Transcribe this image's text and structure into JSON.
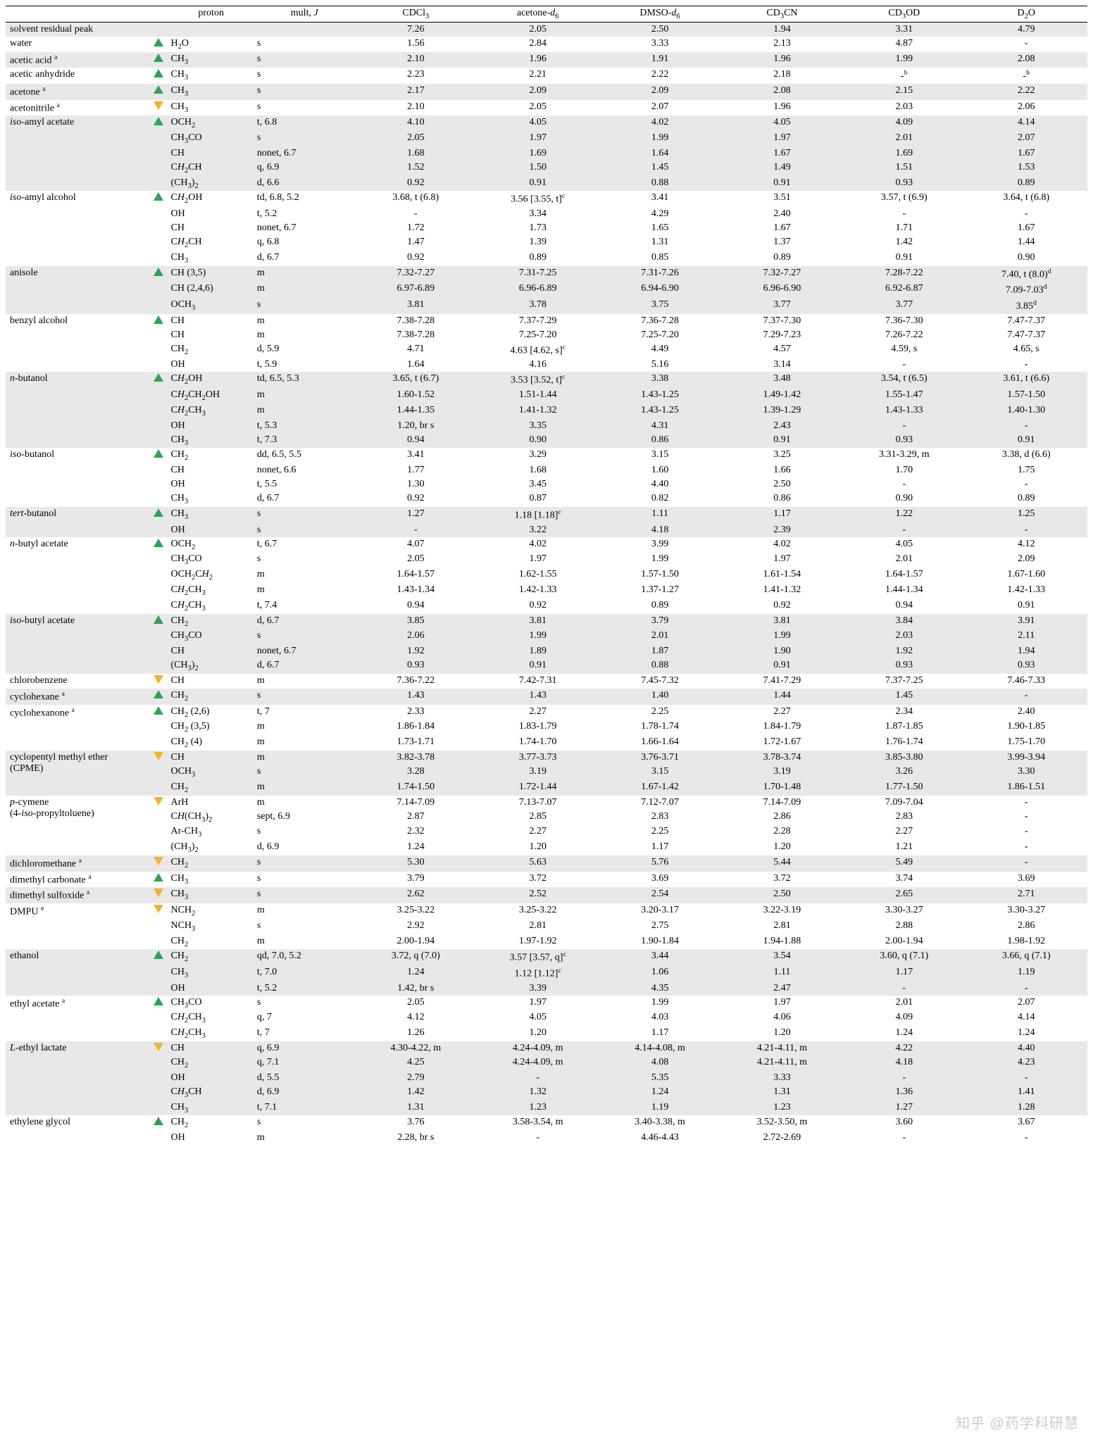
{
  "headers": [
    "proton",
    "mult, J",
    "CDCl3",
    "acetone-d6",
    "DMSO-d6",
    "CD3CN",
    "CD3OD",
    "D2O"
  ],
  "headers_html": [
    "proton",
    "mult, <i>J</i>",
    "CDCl<sub>3</sub>",
    "acetone-<i>d</i><sub>6</sub>",
    "DMSO-<i>d</i><sub>6</sub>",
    "CD<sub>3</sub>CN",
    "CD<sub>3</sub>OD",
    "D<sub>2</sub>O"
  ],
  "marker_colors": {
    "up": "#2ea44f",
    "down": "#f0b429"
  },
  "row_colors": {
    "grey": "#e8e8e8",
    "white": "#ffffff"
  },
  "watermark_text": "知乎 @药学科研慧",
  "rows": [
    {
      "grey": true,
      "name": "solvent residual peak",
      "marker": "",
      "sub": [
        [
          "",
          "",
          "7.26",
          "2.05",
          "2.50",
          "1.94",
          "3.31",
          "4.79"
        ]
      ]
    },
    {
      "grey": false,
      "name": "water",
      "marker": "up",
      "sub": [
        [
          "H2O",
          "s",
          "1.56",
          "2.84",
          "3.33",
          "2.13",
          "4.87",
          "-"
        ]
      ]
    },
    {
      "grey": true,
      "name": "acetic acid <sup>a</sup>",
      "marker": "up",
      "sub": [
        [
          "CH3",
          "s",
          "2.10",
          "1.96",
          "1.91",
          "1.96",
          "1.99",
          "2.08"
        ]
      ]
    },
    {
      "grey": false,
      "name": "acetic anhydride",
      "marker": "up",
      "sub": [
        [
          "CH3",
          "s",
          "2.23",
          "2.21",
          "2.22",
          "2.18",
          "-<sup>b</sup>",
          "-<sup>b</sup>"
        ]
      ]
    },
    {
      "grey": true,
      "name": "acetone <sup>a</sup>",
      "marker": "up",
      "sub": [
        [
          "CH3",
          "s",
          "2.17",
          "2.09",
          "2.09",
          "2.08",
          "2.15",
          "2.22"
        ]
      ]
    },
    {
      "grey": false,
      "name": "acetonitrile <sup>a</sup>",
      "marker": "down",
      "sub": [
        [
          "CH3",
          "s",
          "2.10",
          "2.05",
          "2.07",
          "1.96",
          "2.03",
          "2.06"
        ]
      ]
    },
    {
      "grey": true,
      "name": "iso-amyl acetate",
      "name_html": "<i>iso</i>-amyl acetate",
      "marker": "up",
      "sub": [
        [
          "OCH2",
          "t, 6.8",
          "4.10",
          "4.05",
          "4.02",
          "4.05",
          "4.09",
          "4.14"
        ],
        [
          "CH3CO",
          "s",
          "2.05",
          "1.97",
          "1.99",
          "1.97",
          "2.01",
          "2.07"
        ],
        [
          "CH",
          "nonet, 6.7",
          "1.68",
          "1.69",
          "1.64",
          "1.67",
          "1.69",
          "1.67"
        ],
        [
          "CH2CH",
          "q, 6.9",
          "1.52",
          "1.50",
          "1.45",
          "1.49",
          "1.51",
          "1.53"
        ],
        [
          "(CH3)2",
          "d, 6.6",
          "0.92",
          "0.91",
          "0.88",
          "0.91",
          "0.93",
          "0.89"
        ]
      ]
    },
    {
      "grey": false,
      "name": "iso-amyl alcohol",
      "name_html": "<i>iso</i>-amyl alcohol",
      "marker": "up",
      "sub": [
        [
          "CH2OH",
          "td, 6.8, 5.2",
          "3.68, t (6.8)",
          "3.56 [3.55, t]<sup>c</sup>",
          "3.41",
          "3.51",
          "3.57, t (6.9)",
          "3.64, t (6.8)"
        ],
        [
          "OH",
          "t, 5.2",
          "-",
          "3.34",
          "4.29",
          "2.40",
          "-",
          "-"
        ],
        [
          "CH",
          "nonet, 6.7",
          "1.72",
          "1.73",
          "1.65",
          "1.67",
          "1.71",
          "1.67"
        ],
        [
          "CH2CH",
          "q, 6.8",
          "1.47",
          "1.39",
          "1.31",
          "1.37",
          "1.42",
          "1.44"
        ],
        [
          "CH3",
          "d, 6.7",
          "0.92",
          "0.89",
          "0.85",
          "0.89",
          "0.91",
          "0.90"
        ]
      ]
    },
    {
      "grey": true,
      "name": "anisole",
      "marker": "up",
      "sub": [
        [
          "CH (3,5)",
          "m",
          "7.32-7.27",
          "7.31-7.25",
          "7.31-7.26",
          "7.32-7.27",
          "7.28-7.22",
          "7.40, t (8.0)<sup>d</sup>"
        ],
        [
          "CH (2,4,6)",
          "m",
          "6.97-6.89",
          "6.96-6.89",
          "6.94-6.90",
          "6.96-6.90",
          "6.92-6.87",
          "7.09-7.03<sup>d</sup>"
        ],
        [
          "OCH3",
          "s",
          "3.81",
          "3.78",
          "3.75",
          "3.77",
          "3.77",
          "3.85<sup>d</sup>"
        ]
      ]
    },
    {
      "grey": false,
      "name": "benzyl alcohol",
      "marker": "up",
      "sub": [
        [
          "CH",
          "m",
          "7.38-7.28",
          "7.37-7.29",
          "7.36-7.28",
          "7.37-7.30",
          "7.36-7.30",
          "7.47-7.37"
        ],
        [
          "CH",
          "m",
          "7.38-7.28",
          "7.25-7.20",
          "7.25-7.20",
          "7.29-7.23",
          "7.26-7.22",
          "7.47-7.37"
        ],
        [
          "CH2",
          "d, 5.9",
          "4.71",
          "4.63 [4.62, s]<sup>c</sup>",
          "4.49",
          "4.57",
          "4.59, s",
          "4.65, s"
        ],
        [
          "OH",
          "t, 5.9",
          "1.64",
          "4.16",
          "5.16",
          "3.14",
          "-",
          "-"
        ]
      ]
    },
    {
      "grey": true,
      "name": "n-butanol",
      "name_html": "<i>n</i>-butanol",
      "marker": "up",
      "sub": [
        [
          "CH2OH",
          "td, 6.5, 5.3",
          "3.65, t (6.7)",
          "3.53 [3.52, t]<sup>c</sup>",
          "3.38",
          "3.48",
          "3.54, t (6.5)",
          "3.61, t (6.6)"
        ],
        [
          "CH2CH2OH",
          "m",
          "1.60-1.52",
          "1.51-1.44",
          "1.43-1.25",
          "1.49-1.42",
          "1.55-1.47",
          "1.57-1.50"
        ],
        [
          "CH2CH3",
          "m",
          "1.44-1.35",
          "1.41-1.32",
          "1.43-1.25",
          "1.39-1.29",
          "1.43-1.33",
          "1.40-1.30"
        ],
        [
          "OH",
          "t, 5.3",
          "1.20, br s",
          "3.35",
          "4.31",
          "2.43",
          "-",
          "-"
        ],
        [
          "CH3",
          "t, 7.3",
          "0.94",
          "0.90",
          "0.86",
          "0.91",
          "0.93",
          "0.91"
        ]
      ]
    },
    {
      "grey": false,
      "name": "iso-butanol",
      "name_html": "<i>iso</i>-butanol",
      "marker": "up",
      "sub": [
        [
          "CH2",
          "dd, 6.5, 5.5",
          "3.41",
          "3.29",
          "3.15",
          "3.25",
          "3.31-3.29, m",
          "3.38, d (6.6)"
        ],
        [
          "CH",
          "nonet, 6.6",
          "1.77",
          "1.68",
          "1.60",
          "1.66",
          "1.70",
          "1.75"
        ],
        [
          "OH",
          "t, 5.5",
          "1.30",
          "3.45",
          "4.40",
          "2.50",
          "-",
          "-"
        ],
        [
          "CH3",
          "d, 6.7",
          "0.92",
          "0.87",
          "0.82",
          "0.86",
          "0.90",
          "0.89"
        ]
      ]
    },
    {
      "grey": true,
      "name": "tert-butanol",
      "name_html": "<i>tert</i>-butanol",
      "marker": "up",
      "sub": [
        [
          "CH3",
          "s",
          "1.27",
          "1.18 [1.18]<sup>c</sup>",
          "1.11",
          "1.17",
          "1.22",
          "1.25"
        ],
        [
          "OH",
          "s",
          "-",
          "3.22",
          "4.18",
          "2.39",
          "-",
          "-"
        ]
      ]
    },
    {
      "grey": false,
      "name": "n-butyl acetate",
      "name_html": "<i>n</i>-butyl acetate",
      "marker": "up",
      "sub": [
        [
          "OCH2",
          "t, 6.7",
          "4.07",
          "4.02",
          "3.99",
          "4.02",
          "4.05",
          "4.12"
        ],
        [
          "CH3CO",
          "s",
          "2.05",
          "1.97",
          "1.99",
          "1.97",
          "2.01",
          "2.09"
        ],
        [
          "OCH2CH2",
          "m",
          "1.64-1.57",
          "1.62-1.55",
          "1.57-1.50",
          "1.61-1.54",
          "1.64-1.57",
          "1.67-1.60"
        ],
        [
          "CH2CH3",
          "m",
          "1.43-1.34",
          "1.42-1.33",
          "1.37-1.27",
          "1.41-1.32",
          "1.44-1.34",
          "1.42-1.33"
        ],
        [
          "CH2CH3",
          "t, 7.4",
          "0.94",
          "0.92",
          "0.89",
          "0.92",
          "0.94",
          "0.91"
        ]
      ]
    },
    {
      "grey": true,
      "name": "iso-butyl acetate",
      "name_html": "<i>iso</i>-butyl acetate",
      "marker": "up",
      "sub": [
        [
          "CH2",
          "d, 6.7",
          "3.85",
          "3.81",
          "3.79",
          "3.81",
          "3.84",
          "3.91"
        ],
        [
          "CH3CO",
          "s",
          "2.06",
          "1.99",
          "2.01",
          "1.99",
          "2.03",
          "2.11"
        ],
        [
          "CH",
          "nonet, 6.7",
          "1.92",
          "1.89",
          "1.87",
          "1.90",
          "1.92",
          "1.94"
        ],
        [
          "(CH3)2",
          "d, 6.7",
          "0.93",
          "0.91",
          "0.88",
          "0.91",
          "0.93",
          "0.93"
        ]
      ]
    },
    {
      "grey": false,
      "name": "chlorobenzene",
      "marker": "down",
      "sub": [
        [
          "CH",
          "m",
          "7.36-7.22",
          "7.42-7.31",
          "7.45-7.32",
          "7.41-7.29",
          "7.37-7.25",
          "7.46-7.33"
        ]
      ]
    },
    {
      "grey": true,
      "name": "cyclohexane <sup>a</sup>",
      "marker": "up",
      "sub": [
        [
          "CH2",
          "s",
          "1.43",
          "1.43",
          "1.40",
          "1.44",
          "1.45",
          "-"
        ]
      ]
    },
    {
      "grey": false,
      "name": "cyclohexanone <sup>a</sup>",
      "marker": "up",
      "sub": [
        [
          "CH2 (2,6)",
          "t, 7",
          "2.33",
          "2.27",
          "2.25",
          "2.27",
          "2.34",
          "2.40"
        ],
        [
          "CH2 (3,5)",
          "m",
          "1.86-1.84",
          "1.83-1.79",
          "1.78-1.74",
          "1.84-1.79",
          "1.87-1.85",
          "1.90-1.85"
        ],
        [
          "CH2 (4)",
          "m",
          "1.73-1.71",
          "1.74-1.70",
          "1.66-1.64",
          "1.72-1.67",
          "1.76-1.74",
          "1.75-1.70"
        ]
      ]
    },
    {
      "grey": true,
      "name": "cyclopentyl methyl ether<br>(CPME)",
      "marker": "down",
      "sub": [
        [
          "CH",
          "m",
          "3.82-3.78",
          "3.77-3.73",
          "3.76-3.71",
          "3.78-3.74",
          "3.85-3.80",
          "3.99-3.94"
        ],
        [
          "OCH3",
          "s",
          "3.28",
          "3.19",
          "3.15",
          "3.19",
          "3.26",
          "3.30"
        ],
        [
          "CH2",
          "m",
          "1.74-1.50",
          "1.72-1.44",
          "1.67-1.42",
          "1.70-1.48",
          "1.77-1.50",
          "1.86-1.51"
        ]
      ]
    },
    {
      "grey": false,
      "name": "p-cymene\n(4-iso-propyltoluene)",
      "name_html": "<i>p</i>-cymene<br>(4-<i>iso</i>-propyltoluene)",
      "marker": "down",
      "sub": [
        [
          "ArH",
          "m",
          "7.14-7.09",
          "7.13-7.07",
          "7.12-7.07",
          "7.14-7.09",
          "7.09-7.04",
          "-"
        ],
        [
          "CH(CH3)2",
          "sept, 6.9",
          "2.87",
          "2.85",
          "2.83",
          "2.86",
          "2.83",
          "-"
        ],
        [
          "Ar-CH3",
          "s",
          "2.32",
          "2.27",
          "2.25",
          "2.28",
          "2.27",
          "-"
        ],
        [
          "(CH3)2",
          "d, 6.9",
          "1.24",
          "1.20",
          "1.17",
          "1.20",
          "1.21",
          "-"
        ]
      ]
    },
    {
      "grey": true,
      "name": "dichloromethane <sup>a</sup>",
      "marker": "down",
      "sub": [
        [
          "CH2",
          "s",
          "5.30",
          "5.63",
          "5.76",
          "5.44",
          "5.49",
          "-"
        ]
      ]
    },
    {
      "grey": false,
      "name": "dimethyl carbonate <sup>a</sup>",
      "marker": "up",
      "sub": [
        [
          "CH3",
          "s",
          "3.79",
          "3.72",
          "3.69",
          "3.72",
          "3.74",
          "3.69"
        ]
      ]
    },
    {
      "grey": true,
      "name": "dimethyl sulfoxide <sup>a</sup>",
      "marker": "down",
      "sub": [
        [
          "CH3",
          "s",
          "2.62",
          "2.52",
          "2.54",
          "2.50",
          "2.65",
          "2.71"
        ]
      ]
    },
    {
      "grey": false,
      "name": "DMPU <sup>e</sup>",
      "marker": "down",
      "sub": [
        [
          "NCH2",
          "m",
          "3.25-3.22",
          "3.25-3.22",
          "3.20-3.17",
          "3.22-3.19",
          "3.30-3.27",
          "3.30-3.27"
        ],
        [
          "NCH3",
          "s",
          "2.92",
          "2.81",
          "2.75",
          "2.81",
          "2.88",
          "2.86"
        ],
        [
          "CH2",
          "m",
          "2.00-1.94",
          "1.97-1.92",
          "1.90-1.84",
          "1.94-1.88",
          "2.00-1.94",
          "1.98-1.92"
        ]
      ]
    },
    {
      "grey": true,
      "name": "ethanol",
      "marker": "up",
      "sub": [
        [
          "CH2",
          "qd, 7.0, 5.2",
          "3.72, q (7.0)",
          "3.57 [3.57, q]<sup>c</sup>",
          "3.44",
          "3.54",
          "3.60, q (7.1)",
          "3.66, q (7.1)"
        ],
        [
          "CH3",
          "t, 7.0",
          "1.24",
          "1.12 [1.12]<sup>c</sup>",
          "1.06",
          "1.11",
          "1.17",
          "1.19"
        ],
        [
          "OH",
          "t, 5.2",
          "1.42, br s",
          "3.39",
          "4.35",
          "2.47",
          "-",
          "-"
        ]
      ]
    },
    {
      "grey": false,
      "name": "ethyl acetate <sup>a</sup>",
      "marker": "up",
      "sub": [
        [
          "CH3CO",
          "s",
          "2.05",
          "1.97",
          "1.99",
          "1.97",
          "2.01",
          "2.07"
        ],
        [
          "CH2CH3",
          "q, 7",
          "4.12",
          "4.05",
          "4.03",
          "4.06",
          "4.09",
          "4.14"
        ],
        [
          "CH2CH3",
          "t, 7",
          "1.26",
          "1.20",
          "1.17",
          "1.20",
          "1.24",
          "1.24"
        ]
      ]
    },
    {
      "grey": true,
      "name": "L-ethyl lactate",
      "name_html": "<i>L</i>-ethyl lactate",
      "marker": "down",
      "sub": [
        [
          "CH",
          "q, 6.9",
          "4.30-4.22, m",
          "4.24-4.09, m",
          "4.14-4.08, m",
          "4.21-4.11, m",
          "4.22",
          "4.40"
        ],
        [
          "CH2",
          "q, 7.1",
          "4.25",
          "4.24-4.09, m",
          "4.08",
          "4.21-4.11, m",
          "4.18",
          "4.23"
        ],
        [
          "OH",
          "d, 5.5",
          "2.79",
          "-",
          "5.35",
          "3.33",
          "-",
          "-"
        ],
        [
          "CH3CH",
          "d, 6.9",
          "1.42",
          "1.32",
          "1.24",
          "1.31",
          "1.36",
          "1.41"
        ],
        [
          "CH3",
          "t, 7.1",
          "1.31",
          "1.23",
          "1.19",
          "1.23",
          "1.27",
          "1.28"
        ]
      ]
    },
    {
      "grey": false,
      "name": "ethylene glycol",
      "marker": "up",
      "sub": [
        [
          "CH2",
          "s",
          "3.76",
          "3.58-3.54, m",
          "3.40-3.38, m",
          "3.52-3.50, m",
          "3.60",
          "3.67"
        ],
        [
          "OH",
          "m",
          "2.28, br s",
          "-",
          "4.46-4.43",
          "2.72-2.69",
          "-",
          "-"
        ]
      ]
    }
  ],
  "proton_html": {
    "H2O": "H<sub>2</sub>O",
    "CH3": "CH<sub>3</sub>",
    "CH2": "CH<sub>2</sub>",
    "OCH2": "OCH<sub>2</sub>",
    "CH3CO": "CH<sub>3</sub>CO",
    "CH": "CH",
    "CH2CH": "C<i>H</i><sub>2</sub>CH",
    "(CH3)2": "(CH<sub>3</sub>)<sub>2</sub>",
    "CH2OH": "C<i>H</i><sub>2</sub>OH",
    "OH": "OH",
    "CH (3,5)": "CH (3,5)",
    "CH (2,4,6)": "CH (2,4,6)",
    "OCH3": "OCH<sub>3</sub>",
    "CH2CH2OH": "C<i>H</i><sub>2</sub>CH<sub>2</sub>OH",
    "CH2CH3": "C<i>H</i><sub>2</sub>CH<sub>3</sub>",
    "OCH2CH2": "OCH<sub>2</sub>C<i>H</i><sub>2</sub>",
    "CH2 (2,6)": "CH<sub>2</sub> (2,6)",
    "CH2 (3,5)": "CH<sub>2</sub> (3,5)",
    "CH2 (4)": "CH<sub>2</sub> (4)",
    "ArH": "ArH",
    "CH(CH3)2": "C<i>H</i>(CH<sub>3</sub>)<sub>2</sub>",
    "Ar-CH3": "Ar-CH<sub>3</sub>",
    "NCH2": "NCH<sub>2</sub>",
    "NCH3": "NCH<sub>3</sub>",
    "CH3CH": "C<i>H</i><sub>3</sub>CH"
  }
}
